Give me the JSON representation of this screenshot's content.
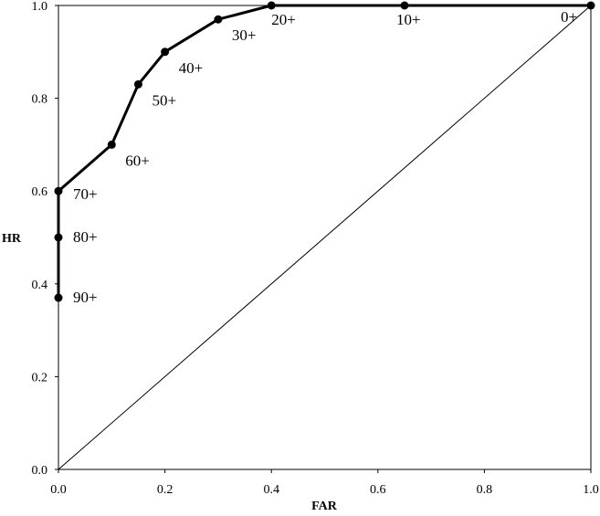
{
  "chart_data": {
    "type": "line",
    "title": "",
    "xlabel": "FAR",
    "ylabel": "HR",
    "xlim": [
      0,
      1
    ],
    "ylim": [
      0,
      1
    ],
    "x_ticks": [
      "0.0",
      "0.2",
      "0.4",
      "0.6",
      "0.8",
      "1.0"
    ],
    "y_ticks": [
      "0.0",
      "0.2",
      "0.4",
      "0.6",
      "0.8",
      "1.0"
    ],
    "grid": false,
    "legend": "none",
    "series": [
      {
        "points": [
          {
            "x": 0.0,
            "y": 0.37,
            "label": "90+"
          },
          {
            "x": 0.0,
            "y": 0.5,
            "label": "80+"
          },
          {
            "x": 0.0,
            "y": 0.6,
            "label": "70+"
          },
          {
            "x": 0.1,
            "y": 0.7,
            "label": "60+"
          },
          {
            "x": 0.15,
            "y": 0.83,
            "label": "50+"
          },
          {
            "x": 0.2,
            "y": 0.9,
            "label": "40+"
          },
          {
            "x": 0.3,
            "y": 0.97,
            "label": "30+"
          },
          {
            "x": 0.4,
            "y": 1.0,
            "label": "20+"
          },
          {
            "x": 0.65,
            "y": 1.0,
            "label": "10+"
          },
          {
            "x": 1.0,
            "y": 1.0,
            "label": "0+"
          }
        ],
        "color": "#000000"
      }
    ],
    "reference_line": {
      "from": [
        0,
        0
      ],
      "to": [
        1,
        1
      ],
      "color": "#000000"
    }
  }
}
